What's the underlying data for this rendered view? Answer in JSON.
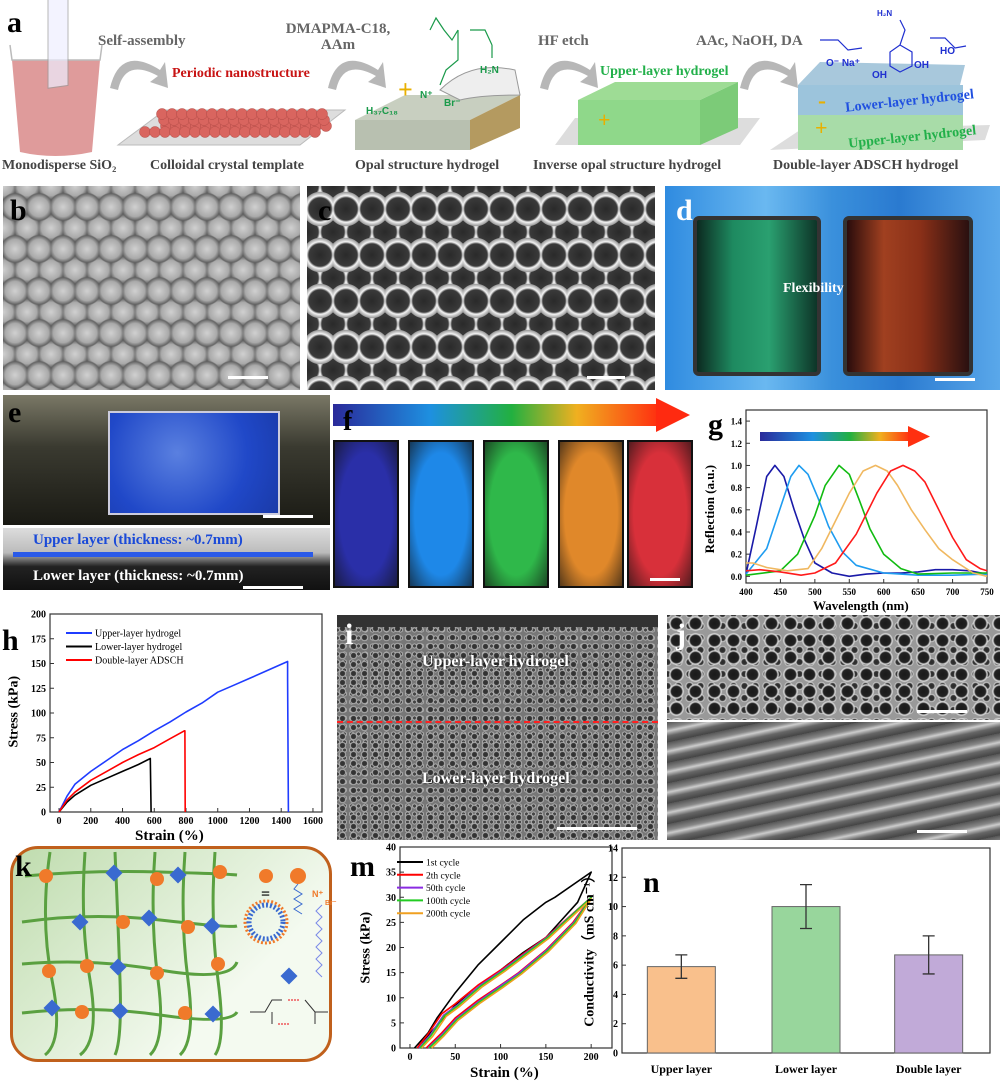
{
  "panel_labels": {
    "a": "a",
    "b": "b",
    "c": "c",
    "d": "d",
    "e": "e",
    "f": "f",
    "g": "g",
    "h": "h",
    "i": "i",
    "j": "j",
    "k": "k",
    "m": "m",
    "n": "n"
  },
  "panel_a": {
    "steps": {
      "self_assembly": "Self-assembly",
      "monomers_line1": "DMAPMA-C18,",
      "monomers_line2": "AAm",
      "hf_etch": "HF etch",
      "aac": "AAc, NaOH, DA"
    },
    "annotations": {
      "periodic": "Periodic nanostructure",
      "upper_inverse": "Upper-layer hydrogel",
      "lower_double": "Lower-layer hydrogel",
      "upper_double": "Upper-layer hydrogel",
      "plus": "+",
      "minus": "-"
    },
    "chem": {
      "h2n": "H₂N",
      "n_plus": "N⁺",
      "br": "Br⁻",
      "alkyl": "H₃₇C₁₈",
      "carboxylate": "O⁻ Na⁺",
      "amine": "H₂N",
      "oh1": "OH",
      "oh2": "OH",
      "ho": "HO",
      "o": "O"
    },
    "captions": {
      "sio2": "Monodisperse SiO₂",
      "template": "Colloidal crystal template",
      "opal": "Opal structure hydrogel",
      "inverse": "Inverse opal structure hydrogel",
      "double": "Double-layer ADSCH hydrogel"
    }
  },
  "panel_d": {
    "flexibility": "Flexibility"
  },
  "panel_e": {
    "upper": "Upper layer (thickness: ~0.7mm)",
    "lower": "Lower layer (thickness: ~0.7mm)"
  },
  "panel_f": {
    "swatch_colors": [
      "#2a2fa8",
      "#1e88e8",
      "#2fb84a",
      "#e0882a",
      "#d8303a"
    ]
  },
  "panel_i": {
    "upper": "Upper-layer hydrogel",
    "lower": "Lower-layer hydrogel"
  },
  "panel_k": {
    "equals": "=",
    "n_plus": "N⁺",
    "br": "Br⁻"
  },
  "chart_data": [
    {
      "id": "h",
      "type": "line",
      "title": "",
      "xlabel": "Strain (%)",
      "ylabel": "Stress (kPa)",
      "xlim": [
        -57,
        1657
      ],
      "ylim": [
        0,
        200
      ],
      "xticks": [
        "0",
        "200",
        "400",
        "600",
        "800",
        "1000",
        "1200",
        "1400",
        "1600"
      ],
      "yticks": [
        "0",
        "25",
        "50",
        "75",
        "100",
        "125",
        "150",
        "175",
        "200"
      ],
      "legend_position": "top-left",
      "series": [
        {
          "name": "Upper-layer hydrogel",
          "color": "#1f3cff",
          "x": [
            0,
            50,
            100,
            200,
            300,
            400,
            500,
            600,
            700,
            800,
            900,
            1000,
            1100,
            1200,
            1300,
            1440,
            1440,
            1445
          ],
          "y": [
            0,
            16,
            28,
            41,
            52,
            63,
            72,
            82,
            91,
            101,
            110,
            121,
            128,
            135,
            142,
            152,
            135,
            0
          ]
        },
        {
          "name": "Lower-layer hydrogel",
          "color": "#000000",
          "x": [
            0,
            50,
            100,
            200,
            300,
            400,
            500,
            575,
            580
          ],
          "y": [
            0,
            10,
            17,
            27,
            34,
            41,
            48,
            54,
            0
          ]
        },
        {
          "name": "Double-layer ADSCH",
          "color": "#ff0000",
          "x": [
            0,
            50,
            100,
            200,
            300,
            400,
            500,
            600,
            700,
            790,
            793,
            795
          ],
          "y": [
            0,
            12,
            20,
            32,
            41,
            50,
            58,
            65,
            74,
            82,
            82,
            0
          ]
        }
      ]
    },
    {
      "id": "g",
      "type": "line",
      "title": "",
      "xlabel": "Wavelength (nm)",
      "ylabel": "Reflection (a.u.)",
      "xlim": [
        400,
        750
      ],
      "ylim": [
        -0.06,
        1.5
      ],
      "xticks": [
        "400",
        "450",
        "500",
        "550",
        "600",
        "650",
        "700",
        "750"
      ],
      "yticks": [
        "0.0",
        "0.2",
        "0.4",
        "0.6",
        "0.8",
        "1.0",
        "1.2",
        "1.4"
      ],
      "series": [
        {
          "name": "peak 442 nm",
          "color": "#1a1aa8",
          "x": [
            400,
            415,
            430,
            442,
            455,
            470,
            485,
            500,
            525,
            550,
            575,
            600,
            625,
            650,
            675,
            700,
            725,
            750
          ],
          "y": [
            0.02,
            0.45,
            0.9,
            1.0,
            0.9,
            0.6,
            0.33,
            0.12,
            0.03,
            0.0,
            0.02,
            0.03,
            0.03,
            0.04,
            0.06,
            0.06,
            0.05,
            0.02
          ]
        },
        {
          "name": "peak 477 nm",
          "color": "#1e9cf0",
          "x": [
            400,
            430,
            450,
            465,
            477,
            490,
            505,
            520,
            540,
            560,
            600,
            650,
            700,
            750
          ],
          "y": [
            0.02,
            0.25,
            0.62,
            0.9,
            1.0,
            0.92,
            0.7,
            0.45,
            0.22,
            0.1,
            0.03,
            0.01,
            0.01,
            0.02
          ]
        },
        {
          "name": "peak 535 nm",
          "color": "#11bb11",
          "x": [
            400,
            450,
            475,
            500,
            515,
            535,
            550,
            565,
            580,
            600,
            625,
            650,
            700,
            750
          ],
          "y": [
            0.01,
            0.05,
            0.2,
            0.55,
            0.82,
            1.0,
            0.92,
            0.68,
            0.43,
            0.2,
            0.07,
            0.02,
            0.03,
            0.03
          ]
        },
        {
          "name": "peak 588 nm",
          "color": "#f0b860",
          "x": [
            400,
            410,
            430,
            460,
            490,
            510,
            530,
            550,
            570,
            588,
            605,
            620,
            640,
            660,
            680,
            700,
            730,
            750
          ],
          "y": [
            0.12,
            0.12,
            0.08,
            0.05,
            0.07,
            0.25,
            0.5,
            0.75,
            0.95,
            1.0,
            0.95,
            0.82,
            0.6,
            0.42,
            0.25,
            0.15,
            0.03,
            0.0
          ]
        },
        {
          "name": "peak 628 nm",
          "color": "#ff1a1a",
          "x": [
            400,
            420,
            450,
            480,
            500,
            530,
            560,
            590,
            610,
            628,
            645,
            660,
            680,
            700,
            720,
            740,
            750
          ],
          "y": [
            0.05,
            0.06,
            0.04,
            0.01,
            0.03,
            0.12,
            0.38,
            0.75,
            0.95,
            1.0,
            0.95,
            0.85,
            0.6,
            0.35,
            0.15,
            0.07,
            0.05
          ]
        }
      ]
    },
    {
      "id": "m",
      "type": "line",
      "title": "",
      "xlabel": "Strain (%)",
      "ylabel": "Stress (kPa)",
      "xlim": [
        -11,
        223
      ],
      "ylim": [
        0,
        40
      ],
      "xticks": [
        "0",
        "50",
        "100",
        "150",
        "200"
      ],
      "yticks": [
        "0",
        "5",
        "10",
        "15",
        "20",
        "25",
        "30",
        "35",
        "40"
      ],
      "legend_position": "top-left",
      "series": [
        {
          "name": "1st cycle",
          "color": "#000000",
          "x": [
            5,
            20,
            30,
            50,
            75,
            100,
            125,
            150,
            160,
            200,
            185,
            165,
            150,
            125,
            100,
            75,
            50,
            35,
            20,
            10
          ],
          "y": [
            0,
            3,
            6,
            11,
            16.5,
            21,
            25.5,
            29,
            30,
            35,
            29,
            25,
            22,
            19,
            15.5,
            12,
            8.5,
            5.5,
            2.5,
            0.5
          ]
        },
        {
          "name": "2th cycle",
          "color": "#ff0000",
          "x": [
            8,
            20,
            35,
            50,
            75,
            100,
            150,
            200,
            180,
            150,
            120,
            100,
            75,
            50,
            35,
            18
          ],
          "y": [
            0,
            2.8,
            6.8,
            8.8,
            12.5,
            15.5,
            22,
            30,
            25,
            19.5,
            15,
            12.5,
            9.5,
            6,
            3,
            0
          ]
        },
        {
          "name": "50th cycle",
          "color": "#8a2be2",
          "x": [
            10,
            22,
            37,
            52,
            77,
            102,
            151,
            200,
            181,
            151,
            121,
            101,
            76,
            51,
            36,
            20
          ],
          "y": [
            0,
            2.5,
            6.5,
            8.5,
            12.4,
            15.5,
            22,
            30,
            25,
            19.5,
            15,
            12.5,
            9.3,
            5.8,
            2.8,
            0
          ]
        },
        {
          "name": "100th cycle",
          "color": "#22cc22",
          "x": [
            11,
            23,
            38,
            53,
            78,
            103,
            152,
            200,
            182,
            152,
            122,
            102,
            77,
            52,
            37,
            21
          ],
          "y": [
            0,
            2.4,
            6.4,
            8.4,
            12.3,
            15.4,
            22,
            30,
            25,
            19.4,
            14.8,
            12.3,
            9.2,
            5.7,
            2.7,
            0
          ]
        },
        {
          "name": "200th cycle",
          "color": "#f0a020",
          "x": [
            13,
            25,
            40,
            55,
            80,
            105,
            153,
            200,
            183,
            153,
            123,
            103,
            78,
            53,
            38,
            24
          ],
          "y": [
            0,
            2.3,
            6.3,
            8.3,
            12.2,
            15.3,
            21.8,
            29.7,
            24.8,
            19.2,
            14.7,
            12.1,
            9,
            5.5,
            2.5,
            0
          ]
        }
      ]
    },
    {
      "id": "n",
      "type": "bar",
      "title": "",
      "xlabel": "",
      "ylabel": "Conductivity（mS cm⁻¹）",
      "ylim": [
        0,
        14
      ],
      "yticks": [
        "0",
        "2",
        "4",
        "6",
        "8",
        "10",
        "12",
        "14"
      ],
      "categories": [
        "Upper layer",
        "Lower layer",
        "Double layer"
      ],
      "values": [
        5.9,
        10.0,
        6.7
      ],
      "errors": [
        0.8,
        1.5,
        1.3
      ],
      "colors": [
        "#f9c08c",
        "#98d69c",
        "#c1aad8"
      ]
    }
  ]
}
